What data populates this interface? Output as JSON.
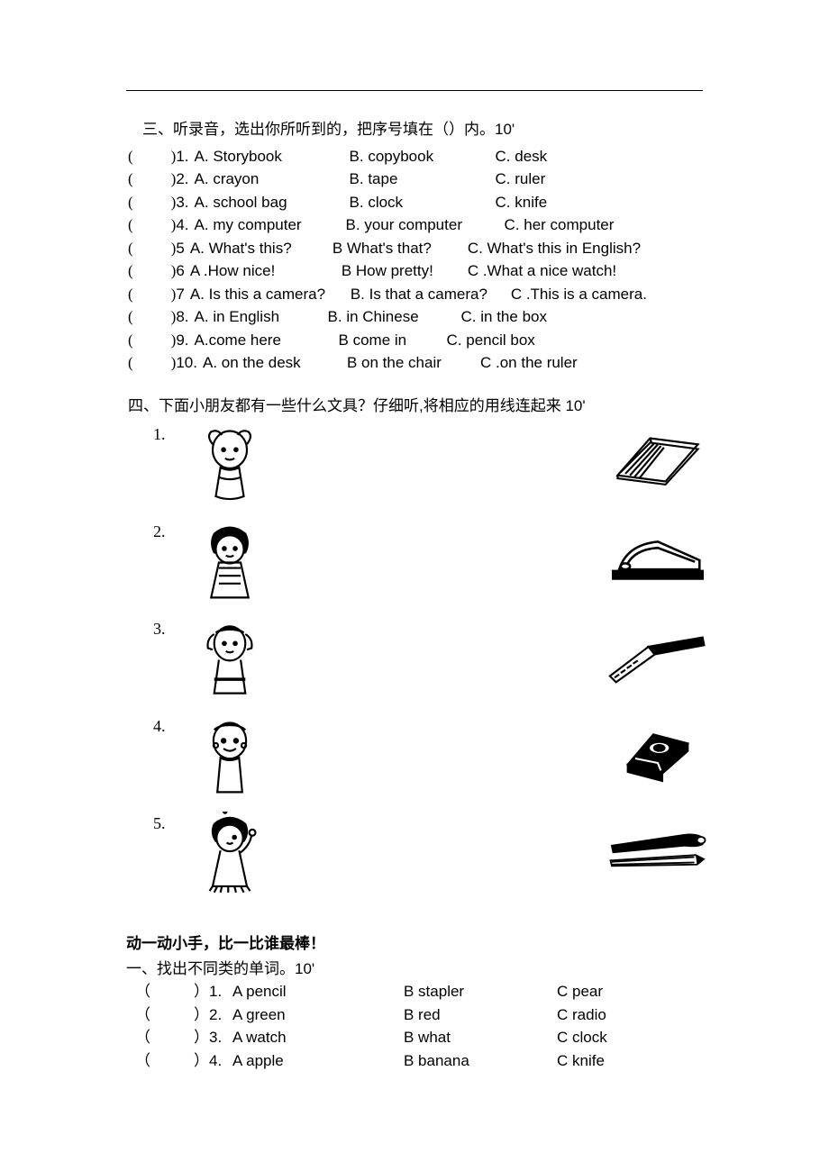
{
  "section3": {
    "title": "三、听录音，选出你所听到的，把序号填在（）内。10'",
    "questions": [
      {
        "num": "1.",
        "a": "A. Storybook",
        "b": "B. copybook",
        "c": "C. desk",
        "aw": 172,
        "bw": 162,
        "cw": 120
      },
      {
        "num": "2.",
        "a": "A. crayon",
        "b": "B. tape",
        "c": "C. ruler",
        "aw": 172,
        "bw": 162,
        "cw": 120
      },
      {
        "num": "3.",
        "a": "A. school bag",
        "b": "B. clock",
        "c": "C. knife",
        "aw": 172,
        "bw": 162,
        "cw": 120
      },
      {
        "num": "4.",
        "a": "A. my computer",
        "b": "B. your computer",
        "c": "C. her computer",
        "aw": 168,
        "bw": 176,
        "cw": 160
      },
      {
        "num": "5",
        "a": "A. What's this?",
        "b": "B What's that?",
        "c": "C. What's this in English?",
        "aw": 158,
        "bw": 150,
        "cw": 230
      },
      {
        "num": "6",
        "a": "A .How nice!",
        "b": "B How pretty!",
        "c": "C .What a nice watch!",
        "aw": 168,
        "bw": 140,
        "cw": 220
      },
      {
        "num": "7",
        "a": "A. Is this a camera?",
        "b": "B. Is that a camera?",
        "c": "C .This is a camera.",
        "aw": 178,
        "bw": 178,
        "cw": 200
      },
      {
        "num": "8.",
        "a": "A. in English",
        "b": "B. in Chinese",
        "c": "C. in the box",
        "aw": 148,
        "bw": 148,
        "cw": 140
      },
      {
        "num": "9.",
        "a": "A.come here",
        "b": "B come in",
        "c": "C. pencil box",
        "aw": 160,
        "bw": 120,
        "cw": 150
      },
      {
        "num": "10.",
        "a": "A. on the desk",
        "b": "B on the chair",
        "c": "C .on the ruler",
        "aw": 160,
        "bw": 148,
        "cw": 160
      }
    ]
  },
  "section4": {
    "title": "四、下面小朋友都有一些什么文具？仔细听,将相应的用线连起来 10'",
    "rows": [
      {
        "num": "1."
      },
      {
        "num": "2."
      },
      {
        "num": "3."
      },
      {
        "num": "4."
      },
      {
        "num": "5."
      }
    ]
  },
  "section5": {
    "bold_title": "动一动小手，比一比谁最棒！",
    "sub_title": "一、找出不同类的单词。10'",
    "questions": [
      {
        "num": "1.",
        "a": "A pencil",
        "b": "B stapler",
        "c": "C pear"
      },
      {
        "num": "2.",
        "a": "A green",
        "b": "B red",
        "c": "C radio"
      },
      {
        "num": "3.",
        "a": "A watch",
        "b": "B what",
        "c": "C clock"
      },
      {
        "num": "4.",
        "a": "A apple",
        "b": "B banana",
        "c": "C knife"
      }
    ]
  }
}
